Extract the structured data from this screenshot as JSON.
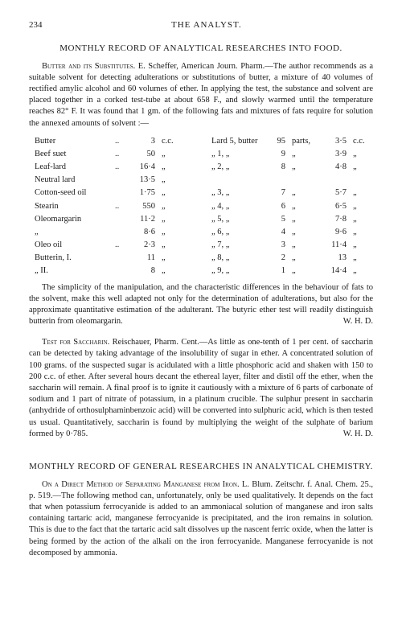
{
  "page_number": "234",
  "journal_title": "THE ANALYST.",
  "section_food_title": "MONTHLY RECORD OF ANALYTICAL RESEARCHES INTO FOOD.",
  "butter_lead": "Butter and its Substitutes.",
  "butter_author": "E. Scheffer, American Journ. Pharm.—The author recommends as a suitable solvent for detecting adulterations or substitutions of butter, a mixture of 40 volumes of rectified amylic alcohol and 60 volumes of ether. In applying the test, the substance and solvent are placed together in a corked test-tube at about 658 F., and slowly warmed until the temperature reaches 82° F. It was found that 1 gm. of the following fats and mixtures of fats require for solution the annexed amounts of solvent :—",
  "fats_left": [
    {
      "name": "Butter",
      "dots": "..",
      "val": "3",
      "unit": "c.c."
    },
    {
      "name": "Beef suet",
      "dots": "..",
      "val": "50",
      "unit": "„"
    },
    {
      "name": "Leaf-lard",
      "dots": "..",
      "val": "16·4",
      "unit": "„"
    },
    {
      "name": "Neutral lard",
      "dots": "",
      "val": "13·5",
      "unit": "„"
    },
    {
      "name": "Cotton-seed oil",
      "dots": "",
      "val": "1·75",
      "unit": "„"
    },
    {
      "name": "Stearin",
      "dots": "..",
      "val": "550",
      "unit": "„"
    },
    {
      "name": "Oleomargarin",
      "dots": "",
      "val": "11·2",
      "unit": "„"
    },
    {
      "name": "„",
      "dots": "",
      "val": "8·6",
      "unit": "„"
    },
    {
      "name": "Oleo oil",
      "dots": "..",
      "val": "2·3",
      "unit": "„"
    },
    {
      "name": "Butterin, I.",
      "dots": "",
      "val": "11",
      "unit": "„"
    },
    {
      "name": "„   II.",
      "dots": "",
      "val": "8",
      "unit": "„"
    }
  ],
  "fats_right": [
    {
      "mix": "Lard 5, butter",
      "p": "95",
      "pl": "parts,",
      "v": "3·5",
      "u": "c.c."
    },
    {
      "mix": "„  1,   „",
      "p": "9",
      "pl": "„",
      "v": "3·9",
      "u": "„"
    },
    {
      "mix": "„  2,   „",
      "p": "8",
      "pl": "„",
      "v": "4·8",
      "u": "„"
    },
    {
      "mix": "",
      "p": "",
      "pl": "",
      "v": "",
      "u": ""
    },
    {
      "mix": "„  3,   „",
      "p": "7",
      "pl": "„",
      "v": "5·7",
      "u": "„"
    },
    {
      "mix": "„  4,   „",
      "p": "6",
      "pl": "„",
      "v": "6·5",
      "u": "„"
    },
    {
      "mix": "„  5,   „",
      "p": "5",
      "pl": "„",
      "v": "7·8",
      "u": "„"
    },
    {
      "mix": "„  6,   „",
      "p": "4",
      "pl": "„",
      "v": "9·6",
      "u": "„"
    },
    {
      "mix": "„  7,   „",
      "p": "3",
      "pl": "„",
      "v": "11·4",
      "u": "„"
    },
    {
      "mix": "„  8,   „",
      "p": "2",
      "pl": "„",
      "v": "13",
      "u": "„"
    },
    {
      "mix": "„  9,   „",
      "p": "1",
      "pl": "„",
      "v": "14·4",
      "u": "„"
    }
  ],
  "butter_close": "The simplicity of the manipulation, and the characteristic differences in the behaviour of fats to the solvent, make this well adapted not only for the determination of adulterations, but also for the approximate quantitative estimation of the adulterant. The butyric ether test will readily distinguish butterin from oleomargarin.",
  "sig1": "W. H. D.",
  "sacch_lead": "Test for Saccharin.",
  "sacch_body": "Reischauer, Pharm. Cent.—As little as one-tenth of 1 per cent. of saccharin can be detected by taking advantage of the insolubility of sugar in ether. A concentrated solution of 100 grams. of the suspected sugar is acidulated with a little phosphoric acid and shaken with 150 to 200 c.c. of ether. After several hours decant the ethereal layer, filter and distil off the ether, when the saccharin will remain. A final proof is to ignite it cautiously with a mixture of 6 parts of carbonate of sodium and 1 part of nitrate of potassium, in a platinum crucible. The sulphur present in saccharin (anhydride of orthosulphaminbenzoic acid) will be converted into sulphuric acid, which is then tested us usual. Quantitatively, saccharin is found by multiplying the weight of the sulphate of barium formed by 0·785.",
  "sig2": "W. H. D.",
  "section_gen_title": "MONTHLY RECORD OF GENERAL RESEARCHES IN ANALYTICAL CHEMISTRY.",
  "mang_lead": "On a Direct Method of Separating Manganese from Iron.",
  "mang_body": "L. Blum. Zeitschr. f. Anal. Chem. 25., p. 519.—The following method can, unfortunately, only be used qualitatively. It depends on the fact that when potassium ferrocyanide is added to an ammoniacal solution of manganese and iron salts containing tartaric acid, manganese ferrocyanide is precipitated, and the iron remains in solution. This is due to the fact that the tartaric acid salt dissolves up the nascent ferric oxide, when the latter is being formed by the action of the alkali on the iron ferrocyanide. Manganese ferrocyanide is not decomposed by ammonia."
}
